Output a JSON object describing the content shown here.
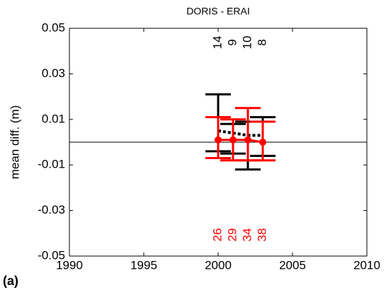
{
  "chart_data": {
    "type": "errorbar",
    "title": "DORIS - ERAI",
    "ylabel": "mean diff. (m)",
    "panel_label": "(a)",
    "x": [
      2000,
      2001,
      2002,
      2003
    ],
    "series": [
      {
        "color": "#000000",
        "values": [
          0.005,
          0.004,
          0.003,
          0.003
        ],
        "upper": [
          0.021,
          0.008,
          0.009,
          0.011
        ],
        "lower": [
          -0.004,
          -0.005,
          -0.012,
          -0.006
        ],
        "counts": [
          14,
          9,
          10,
          8
        ]
      },
      {
        "color": "#ff0000",
        "values": [
          0.001,
          0.001,
          0.001,
          0.0
        ],
        "upper": [
          0.011,
          0.01,
          0.015,
          0.009
        ],
        "lower": [
          -0.007,
          -0.008,
          -0.008,
          -0.008
        ],
        "counts": [
          26,
          29,
          34,
          38
        ]
      }
    ],
    "xlim": [
      1990,
      2010
    ],
    "xticks": [
      1990,
      1995,
      2000,
      2005,
      2010
    ],
    "ylim": [
      -0.05,
      0.05
    ],
    "yticks": [
      -0.05,
      -0.03,
      -0.01,
      0.01,
      0.03,
      0.05
    ],
    "hline": 0
  }
}
